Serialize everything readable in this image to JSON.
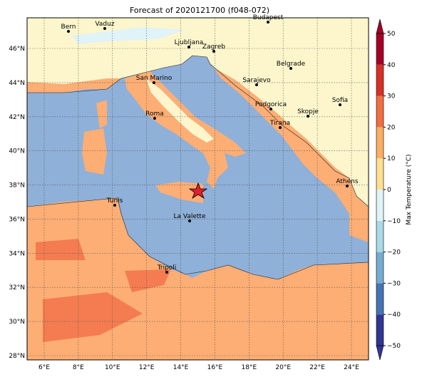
{
  "map": {
    "title": "Forecast of 2020121700 (f048-072)",
    "lon_ticks": [
      {
        "value": 6,
        "label": "6°E"
      },
      {
        "value": 8,
        "label": "8°E"
      },
      {
        "value": 10,
        "label": "10°E"
      },
      {
        "value": 12,
        "label": "12°E"
      },
      {
        "value": 14,
        "label": "14°E"
      },
      {
        "value": 16,
        "label": "16°E"
      },
      {
        "value": 18,
        "label": "18°E"
      },
      {
        "value": 20,
        "label": "20°E"
      },
      {
        "value": 22,
        "label": "22°E"
      },
      {
        "value": 24,
        "label": "24°E"
      }
    ],
    "lat_ticks": [
      {
        "value": 28,
        "label": "28°N"
      },
      {
        "value": 30,
        "label": "30°N"
      },
      {
        "value": 32,
        "label": "32°N"
      },
      {
        "value": 34,
        "label": "34°N"
      },
      {
        "value": 36,
        "label": "36°N"
      },
      {
        "value": 38,
        "label": "38°N"
      },
      {
        "value": 40,
        "label": "40°N"
      },
      {
        "value": 42,
        "label": "42°N"
      },
      {
        "value": 44,
        "label": "44°N"
      },
      {
        "value": 46,
        "label": "46°N"
      }
    ],
    "cities": [
      "Bern",
      "Vaduz",
      "Budapest",
      "Ljubljana",
      "Zagreb",
      "Belgrade",
      "San Marino",
      "Sarajevo",
      "Podgorica",
      "Sofia",
      "Skopje",
      "Roma",
      "Tirana",
      "Athens",
      "Tunis",
      "La Valette",
      "Tripoli"
    ],
    "colorbar": {
      "label": "Max Temperature (°C)",
      "ticks": [
        {
          "value": -50,
          "label": "−50"
        },
        {
          "value": -40,
          "label": "−40"
        },
        {
          "value": -30,
          "label": "−30"
        },
        {
          "value": -20,
          "label": "−20"
        },
        {
          "value": -10,
          "label": "−10"
        },
        0,
        10,
        20,
        30,
        40,
        50
      ],
      "colors": [
        "#313695",
        "#4575b4",
        "#74add1",
        "#abd9e9",
        "#e0f3f8",
        "#fee090",
        "#fdae61",
        "#f46d43",
        "#d73027",
        "#a50026"
      ]
    }
  }
}
